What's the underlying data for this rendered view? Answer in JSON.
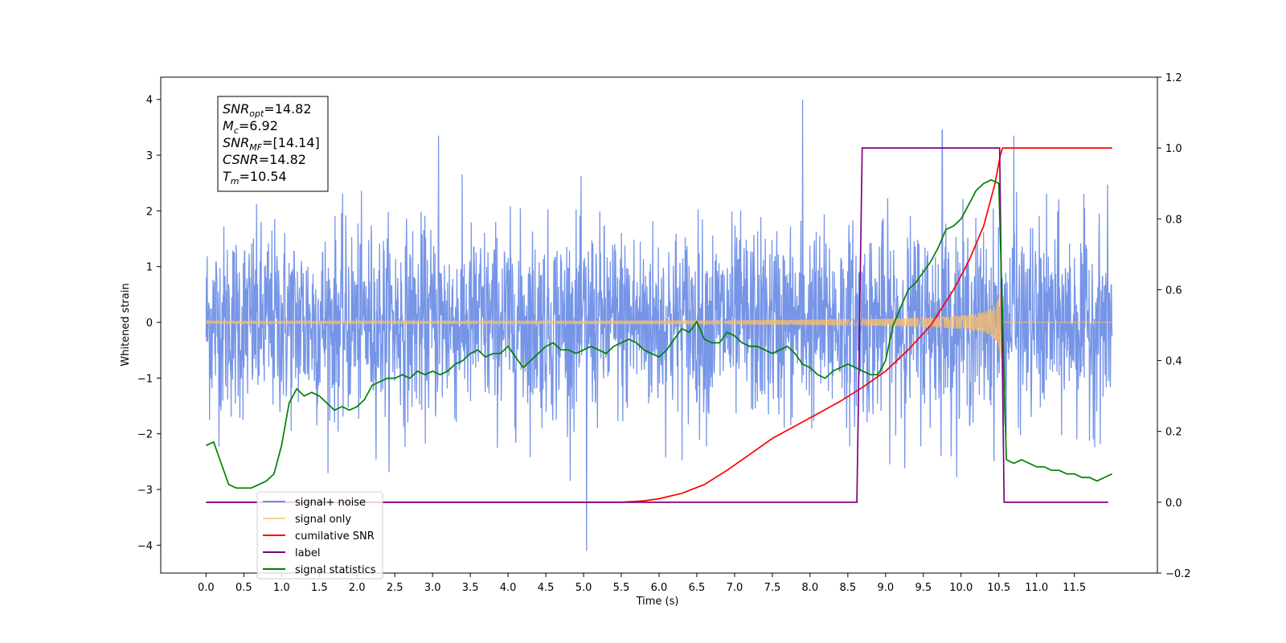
{
  "chart_data": {
    "type": "line",
    "xlabel": "Time (s)",
    "ylabel": "Whitened strain",
    "xlim": [
      -0.6,
      12.6
    ],
    "ylim": [
      -4.5,
      4.4
    ],
    "y2lim": [
      -0.2,
      1.2
    ],
    "x_ticks": [
      "0.0",
      "0.5",
      "1.0",
      "1.5",
      "2.0",
      "2.5",
      "3.0",
      "3.5",
      "4.0",
      "4.5",
      "5.0",
      "5.5",
      "6.0",
      "6.5",
      "7.0",
      "7.5",
      "8.0",
      "8.5",
      "9.0",
      "9.5",
      "10.0",
      "10.5",
      "11.0",
      "11.5"
    ],
    "y_ticks": [
      "4",
      "3",
      "2",
      "1",
      "0",
      "−1",
      "−2",
      "−3",
      "−4"
    ],
    "y2_ticks": [
      "1.2",
      "1.0",
      "0.8",
      "0.6",
      "0.4",
      "0.2",
      "0.0",
      "−0.2"
    ],
    "grid": false,
    "legend_position": "lower-left",
    "info_box": [
      {
        "main": "SNR",
        "sub": "opt",
        "value": "=14.82"
      },
      {
        "main": "M",
        "sub": "c",
        "value": "=6.92"
      },
      {
        "main": "SNR",
        "sub": "MF",
        "value": "=[14.14]"
      },
      {
        "main": "CSNR",
        "sub": "",
        "value": "=14.82"
      },
      {
        "main": "T",
        "sub": "m",
        "value": "=10.54"
      }
    ],
    "series": [
      {
        "name": "signal+ noise",
        "color": "#6f8fe6",
        "axis": "left",
        "style": "noise",
        "time_range": [
          0.0,
          12.0
        ],
        "std": 0.85,
        "min": -4.1,
        "max": 4.0,
        "notable_spikes": [
          [
            5.04,
            -4.1
          ],
          [
            7.9,
            4.0
          ],
          [
            3.08,
            3.35
          ],
          [
            9.75,
            3.45
          ],
          [
            10.7,
            3.35
          ]
        ]
      },
      {
        "name": "signal only",
        "color": "#ffbf66",
        "axis": "left",
        "style": "chirp",
        "time_range": [
          0.0,
          12.0
        ],
        "merger_time": 10.54,
        "peak_amplitude": 0.9
      },
      {
        "name": "cumilative SNR",
        "color": "#ff0000",
        "axis": "right",
        "x": [
          0.0,
          5.5,
          5.8,
          6.0,
          6.3,
          6.6,
          6.9,
          7.2,
          7.5,
          7.8,
          8.1,
          8.4,
          8.7,
          9.0,
          9.3,
          9.6,
          9.9,
          10.1,
          10.3,
          10.45,
          10.52,
          10.55,
          12.0
        ],
        "y": [
          0.0,
          0.0,
          0.004,
          0.01,
          0.025,
          0.05,
          0.09,
          0.135,
          0.18,
          0.215,
          0.25,
          0.285,
          0.325,
          0.37,
          0.43,
          0.5,
          0.6,
          0.68,
          0.78,
          0.9,
          0.98,
          1.0,
          1.0
        ]
      },
      {
        "name": "label",
        "color": "#800080",
        "axis": "right",
        "x": [
          0.0,
          8.62,
          8.69,
          10.51,
          10.57,
          11.95
        ],
        "y": [
          0.0,
          0.0,
          1.0,
          1.0,
          0.0,
          0.0
        ]
      },
      {
        "name": "signal statistics",
        "color": "#008000",
        "axis": "right",
        "x": [
          0.0,
          0.1,
          0.2,
          0.3,
          0.4,
          0.5,
          0.6,
          0.7,
          0.8,
          0.9,
          1.0,
          1.1,
          1.2,
          1.3,
          1.4,
          1.5,
          1.6,
          1.7,
          1.8,
          1.9,
          2.0,
          2.1,
          2.2,
          2.3,
          2.4,
          2.5,
          2.6,
          2.7,
          2.8,
          2.9,
          3.0,
          3.1,
          3.2,
          3.3,
          3.4,
          3.5,
          3.6,
          3.7,
          3.8,
          3.9,
          4.0,
          4.1,
          4.2,
          4.3,
          4.4,
          4.5,
          4.6,
          4.7,
          4.8,
          4.9,
          5.0,
          5.1,
          5.2,
          5.3,
          5.4,
          5.5,
          5.6,
          5.7,
          5.8,
          5.9,
          6.0,
          6.1,
          6.2,
          6.3,
          6.4,
          6.5,
          6.6,
          6.7,
          6.8,
          6.9,
          7.0,
          7.1,
          7.2,
          7.3,
          7.4,
          7.5,
          7.6,
          7.7,
          7.8,
          7.9,
          8.0,
          8.1,
          8.2,
          8.3,
          8.4,
          8.5,
          8.6,
          8.7,
          8.8,
          8.9,
          9.0,
          9.1,
          9.2,
          9.3,
          9.4,
          9.5,
          9.6,
          9.7,
          9.8,
          9.9,
          10.0,
          10.1,
          10.2,
          10.3,
          10.4,
          10.5,
          10.6,
          10.7,
          10.8,
          10.9,
          11.0,
          11.1,
          11.2,
          11.3,
          11.4,
          11.5,
          11.6,
          11.7,
          11.8,
          11.9,
          12.0
        ],
        "y": [
          0.16,
          0.17,
          0.11,
          0.05,
          0.04,
          0.04,
          0.04,
          0.05,
          0.06,
          0.08,
          0.16,
          0.28,
          0.32,
          0.3,
          0.31,
          0.3,
          0.28,
          0.26,
          0.27,
          0.26,
          0.27,
          0.29,
          0.33,
          0.34,
          0.35,
          0.35,
          0.36,
          0.35,
          0.37,
          0.36,
          0.37,
          0.36,
          0.37,
          0.39,
          0.4,
          0.42,
          0.43,
          0.41,
          0.42,
          0.42,
          0.44,
          0.41,
          0.38,
          0.4,
          0.42,
          0.44,
          0.45,
          0.43,
          0.43,
          0.42,
          0.43,
          0.44,
          0.43,
          0.42,
          0.44,
          0.45,
          0.46,
          0.45,
          0.43,
          0.42,
          0.41,
          0.43,
          0.46,
          0.49,
          0.48,
          0.51,
          0.46,
          0.45,
          0.45,
          0.48,
          0.47,
          0.45,
          0.44,
          0.44,
          0.43,
          0.42,
          0.43,
          0.44,
          0.42,
          0.39,
          0.38,
          0.36,
          0.35,
          0.37,
          0.38,
          0.39,
          0.38,
          0.37,
          0.36,
          0.36,
          0.4,
          0.5,
          0.55,
          0.6,
          0.62,
          0.65,
          0.68,
          0.72,
          0.77,
          0.78,
          0.8,
          0.84,
          0.88,
          0.9,
          0.91,
          0.9,
          0.12,
          0.11,
          0.12,
          0.11,
          0.1,
          0.1,
          0.09,
          0.09,
          0.08,
          0.08,
          0.07,
          0.07,
          0.06,
          0.07,
          0.08
        ]
      }
    ]
  }
}
